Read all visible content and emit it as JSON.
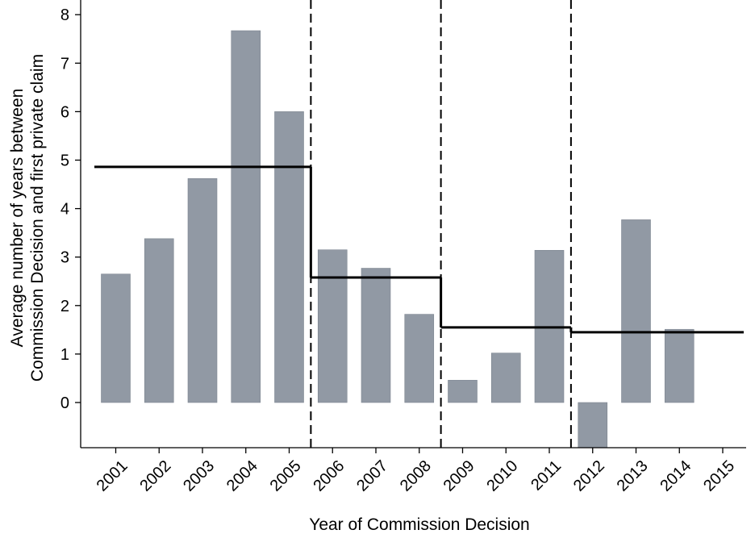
{
  "chart_data": {
    "type": "bar",
    "xlabel": "Year of Commission Decision",
    "ylabel_lines": [
      "Average number of years between",
      "Commission Decision and first private claim"
    ],
    "categories": [
      "2001",
      "2002",
      "2003",
      "2004",
      "2005",
      "2006",
      "2007",
      "2008",
      "2009",
      "2010",
      "2011",
      "2012",
      "2013",
      "2014",
      "2015"
    ],
    "values": [
      2.65,
      3.38,
      4.62,
      7.67,
      6.0,
      3.15,
      2.77,
      1.82,
      0.46,
      1.02,
      3.14,
      -0.95,
      3.77,
      1.51,
      null
    ],
    "yticks": [
      0,
      1,
      2,
      3,
      4,
      5,
      6,
      7,
      8
    ],
    "ylim": [
      -0.95,
      8.2
    ],
    "grid": false,
    "bar_color": "#9199a4",
    "period_breaks": [
      2005.5,
      2008.5,
      2011.5
    ],
    "period_means": [
      {
        "from": 2000.5,
        "to": 2005.5,
        "value": 4.86
      },
      {
        "from": 2005.5,
        "to": 2008.5,
        "value": 2.58
      },
      {
        "from": 2008.5,
        "to": 2011.5,
        "value": 1.55
      },
      {
        "from": 2011.5,
        "to": 2015.5,
        "value": 1.45
      }
    ]
  }
}
